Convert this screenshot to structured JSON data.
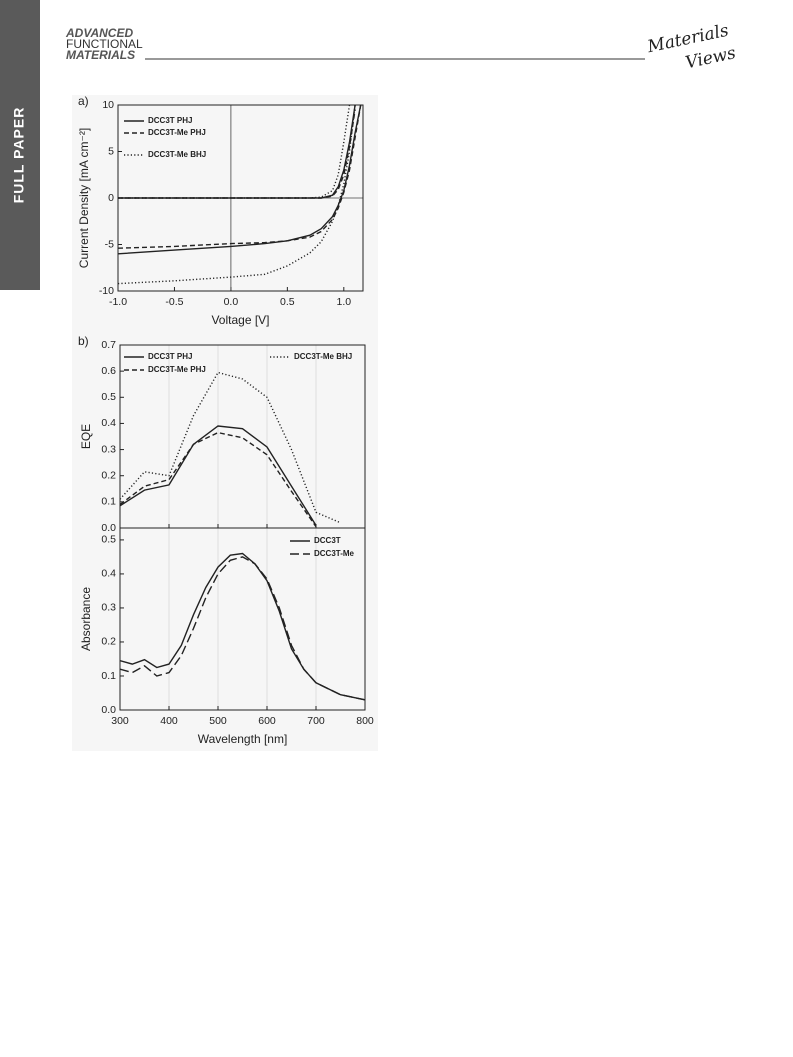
{
  "header": {
    "journal": [
      "ADVANCED",
      "FUNCTIONAL",
      "MATERIALS"
    ],
    "publisher": [
      "Materials",
      "Views"
    ],
    "section": "FULL PAPER"
  },
  "chart_data": [
    {
      "type": "line",
      "panel": "a)",
      "x_label": "Voltage [V]",
      "y_label": "Current Density [mA cm⁻²]",
      "x": [
        -1.0,
        -0.5,
        0.0,
        0.3,
        0.5,
        0.7,
        0.8,
        0.9,
        0.95,
        1.0,
        1.05,
        1.1,
        1.15
      ],
      "xlim": [
        -1.0,
        1.17
      ],
      "ylim": [
        -10,
        10
      ],
      "xticks": [
        {
          "value": -1.0,
          "label": "-1.0"
        },
        {
          "value": -0.5,
          "label": "-0.5"
        },
        {
          "value": 0,
          "label": "0.0"
        },
        0.5,
        {
          "value": 1.0,
          "label": "1.0"
        }
      ],
      "yticks": [
        -10,
        -5,
        0,
        5,
        10
      ],
      "zero_lines": true,
      "legend": "upper left",
      "series": [
        {
          "name": "DCC3T PHJ",
          "color": "#222222",
          "dash": "solid",
          "values": [
            -6.0,
            -5.6,
            -5.2,
            -4.9,
            -4.6,
            -4.0,
            -3.3,
            -2.0,
            -0.8,
            0.8,
            3.5,
            7,
            10
          ],
          "dark_values": [
            0,
            0,
            0,
            0,
            0,
            0,
            0,
            0.3,
            1.2,
            3,
            6,
            10,
            null
          ]
        },
        {
          "name": "DCC3T-Me PHJ",
          "color": "#222222",
          "dash": "dashed",
          "values": [
            -5.4,
            -5.2,
            -4.9,
            -4.8,
            -4.6,
            -4.2,
            -3.6,
            -2.3,
            -1.1,
            0.6,
            3.0,
            6.5,
            10
          ],
          "dark_values": [
            0,
            0,
            0,
            0,
            0,
            0,
            0,
            0.2,
            0.9,
            2.5,
            5.5,
            9.5,
            null
          ]
        },
        {
          "name": "DCC3T-Me BHJ",
          "color": "#222222",
          "dash": "dotted",
          "values": [
            -9.2,
            -8.9,
            -8.5,
            -8.2,
            -7.3,
            -5.9,
            -4.7,
            -2.5,
            -0.8,
            1.5,
            5,
            10,
            null
          ],
          "dark_values": [
            0,
            0,
            0,
            0,
            0,
            0,
            0.1,
            0.8,
            2.5,
            6,
            10,
            null,
            null
          ]
        }
      ]
    },
    {
      "type": "line",
      "panel": "b)",
      "y_label": "EQE",
      "x": [
        300,
        350,
        400,
        450,
        500,
        550,
        600,
        650,
        700,
        750,
        800
      ],
      "xlim": [
        300,
        800
      ],
      "ylim": [
        0,
        0.7
      ],
      "xticks": [
        300,
        400,
        500,
        600,
        700,
        800
      ],
      "xtick_labels": false,
      "yticks": [
        {
          "value": 0,
          "label": "0.0"
        },
        0.1,
        0.2,
        0.3,
        0.4,
        0.5,
        0.6,
        0.7
      ],
      "grid": "x",
      "legend": "upper left",
      "series": [
        {
          "name": "DCC3T PHJ",
          "color": "#222222",
          "dash": "solid",
          "values": [
            0.085,
            0.145,
            0.165,
            0.32,
            0.39,
            0.38,
            0.31,
            0.16,
            0.01,
            null,
            null
          ]
        },
        {
          "name": "DCC3T-Me PHJ",
          "color": "#222222",
          "dash": "dashed",
          "values": [
            0.09,
            0.16,
            0.185,
            0.32,
            0.365,
            0.345,
            0.28,
            0.14,
            0.005,
            null,
            null
          ]
        },
        {
          "name": "DCC3T-Me BHJ",
          "color": "#222222",
          "dash": "dotted",
          "values": [
            0.11,
            0.215,
            0.2,
            0.43,
            0.595,
            0.57,
            0.5,
            0.3,
            0.06,
            0.02,
            null
          ]
        }
      ]
    },
    {
      "type": "line",
      "x_label": "Wavelength [nm]",
      "y_label": "Absorbance",
      "x": [
        300,
        325,
        350,
        375,
        400,
        425,
        450,
        475,
        500,
        525,
        550,
        575,
        600,
        625,
        650,
        675,
        700,
        750,
        800
      ],
      "xlim": [
        300,
        800
      ],
      "ylim": [
        0,
        0.535
      ],
      "xticks": [
        300,
        400,
        500,
        600,
        700,
        800
      ],
      "yticks": [
        {
          "value": 0,
          "label": "0.0"
        },
        0.1,
        0.2,
        0.3,
        0.4,
        0.5
      ],
      "grid": "x",
      "legend": "upper right",
      "series": [
        {
          "name": "DCC3T",
          "color": "#222222",
          "dash": "solid",
          "values": [
            0.145,
            0.135,
            0.148,
            0.125,
            0.135,
            0.19,
            0.28,
            0.36,
            0.42,
            0.455,
            0.46,
            0.43,
            0.38,
            0.29,
            0.18,
            0.12,
            0.08,
            0.045,
            0.03
          ]
        },
        {
          "name": "DCC3T-Me",
          "color": "#222222",
          "dash": "longdash",
          "values": [
            0.12,
            0.11,
            0.13,
            0.1,
            0.11,
            0.16,
            0.24,
            0.33,
            0.4,
            0.44,
            0.45,
            0.43,
            0.385,
            0.3,
            0.19,
            0.12,
            0.08,
            0.045,
            0.03
          ]
        }
      ]
    }
  ]
}
